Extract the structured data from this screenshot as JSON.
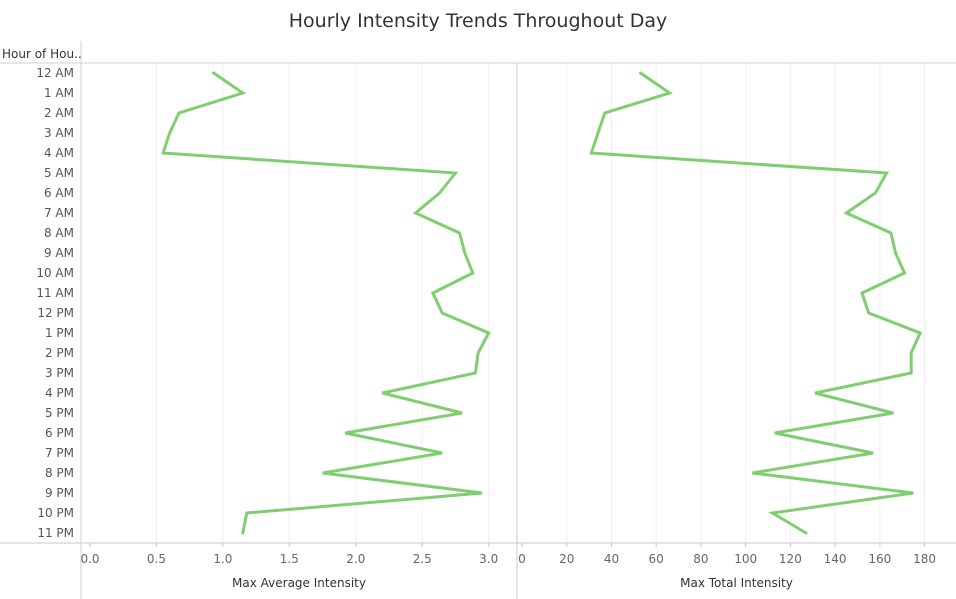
{
  "chart_data": {
    "type": "line",
    "title": "Hourly Intensity Trends Throughout Day",
    "row_header": "Hour of Hou..",
    "categories": [
      "12 AM",
      "1 AM",
      "2 AM",
      "3 AM",
      "4 AM",
      "5 AM",
      "6 AM",
      "7 AM",
      "8 AM",
      "9 AM",
      "10 AM",
      "11 AM",
      "12 PM",
      "1 PM",
      "2 PM",
      "3 PM",
      "4 PM",
      "5 PM",
      "6 PM",
      "7 PM",
      "8 PM",
      "9 PM",
      "10 PM",
      "11 PM"
    ],
    "series_color": "#7fcf70",
    "panels": [
      {
        "name": "Max Average Intensity",
        "xlabel": "Max Average Intensity",
        "xlim": [
          0,
          3.1
        ],
        "ticks": [
          0,
          0.5,
          1,
          1.5,
          2,
          2.5,
          3
        ],
        "tick_labels": [
          "0.0",
          "0.5",
          "1.0",
          "1.5",
          "2.0",
          "2.5",
          "3.0"
        ],
        "values": [
          0.93,
          1.15,
          0.67,
          0.6,
          0.55,
          2.75,
          2.63,
          2.45,
          2.78,
          2.82,
          2.88,
          2.58,
          2.65,
          3.0,
          2.92,
          2.9,
          2.2,
          2.8,
          1.92,
          2.65,
          1.75,
          2.95,
          1.18,
          1.15
        ]
      },
      {
        "name": "Max Total Intensity",
        "xlabel": "Max Total Intensity",
        "xlim": [
          0,
          186
        ],
        "ticks": [
          0,
          20,
          40,
          60,
          80,
          100,
          120,
          140,
          160,
          180
        ],
        "tick_labels": [
          "0",
          "20",
          "40",
          "60",
          "80",
          "100",
          "120",
          "140",
          "160",
          "180"
        ],
        "values": [
          53,
          66,
          37,
          34,
          31,
          163,
          158,
          145,
          165,
          167,
          171,
          152,
          155,
          178,
          174,
          174,
          131,
          166,
          113,
          157,
          103,
          175,
          112,
          127
        ]
      }
    ],
    "grid": true
  }
}
